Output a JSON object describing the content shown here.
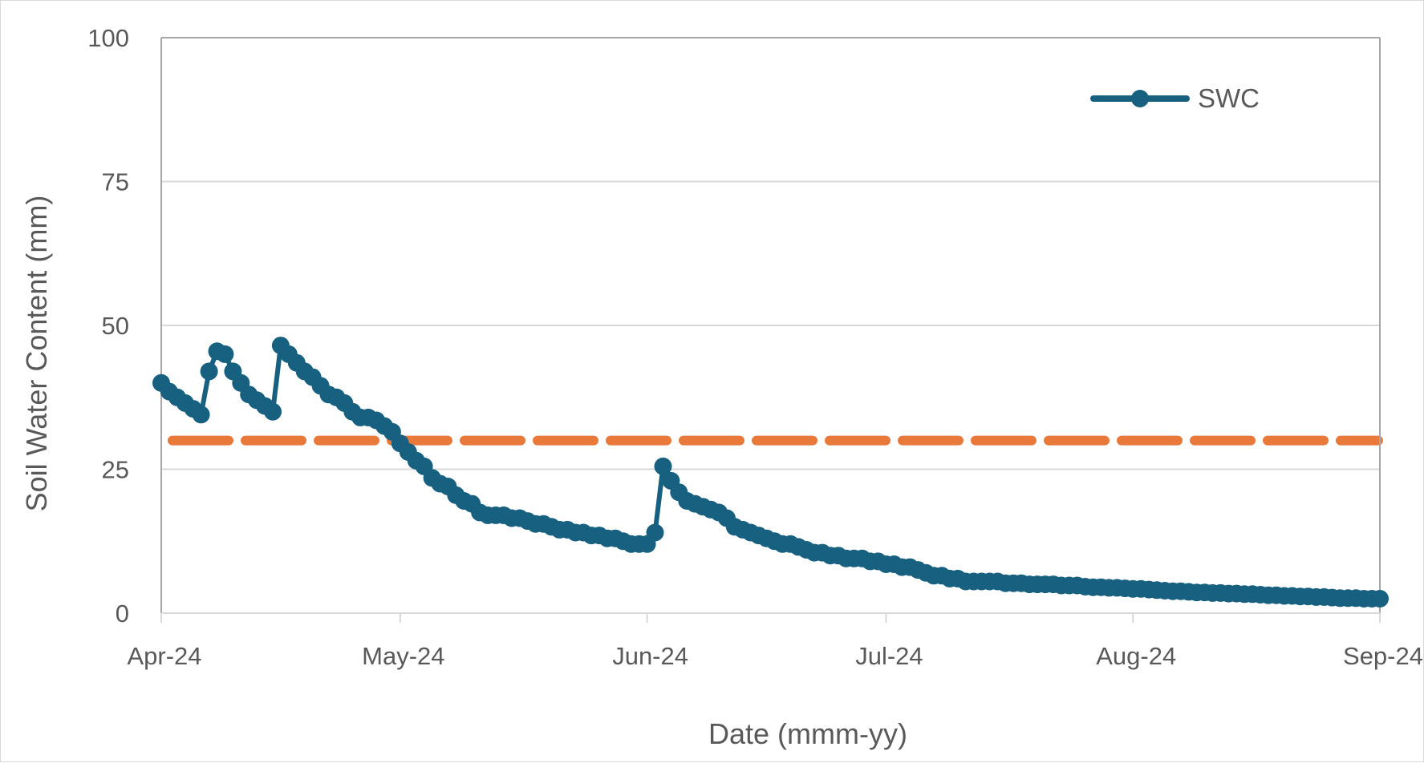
{
  "chart_data": {
    "type": "line",
    "title": "",
    "xlabel": "Date (mmm-yy)",
    "ylabel": "Soil Water Content (mm)",
    "ylim": [
      0,
      100
    ],
    "yticks": [
      "0",
      "25",
      "50",
      "75",
      "100"
    ],
    "xlim": [
      "2024-04-01",
      "2024-09-01"
    ],
    "xticks": [
      {
        "date": "2024-04-01",
        "label": "Apr-24"
      },
      {
        "date": "2024-05-01",
        "label": "May-24"
      },
      {
        "date": "2024-06-01",
        "label": "Jun-24"
      },
      {
        "date": "2024-07-01",
        "label": "Jul-24"
      },
      {
        "date": "2024-08-01",
        "label": "Aug-24"
      },
      {
        "date": "2024-09-01",
        "label": "Sep-24"
      }
    ],
    "grid": true,
    "legend_position": "top-right",
    "series": [
      {
        "name": "SWC",
        "color": "#17607f",
        "marker": "circle",
        "points": [
          [
            "2024-04-01",
            40.0
          ],
          [
            "2024-04-02",
            38.5
          ],
          [
            "2024-04-03",
            37.5
          ],
          [
            "2024-04-04",
            36.5
          ],
          [
            "2024-04-05",
            35.5
          ],
          [
            "2024-04-06",
            34.5
          ],
          [
            "2024-04-07",
            42.0
          ],
          [
            "2024-04-08",
            45.5
          ],
          [
            "2024-04-09",
            45.0
          ],
          [
            "2024-04-10",
            42.0
          ],
          [
            "2024-04-11",
            40.0
          ],
          [
            "2024-04-12",
            38.0
          ],
          [
            "2024-04-13",
            37.0
          ],
          [
            "2024-04-14",
            36.0
          ],
          [
            "2024-04-15",
            35.0
          ],
          [
            "2024-04-16",
            46.5
          ],
          [
            "2024-04-17",
            45.0
          ],
          [
            "2024-04-18",
            43.5
          ],
          [
            "2024-04-19",
            42.0
          ],
          [
            "2024-04-20",
            41.0
          ],
          [
            "2024-04-21",
            39.5
          ],
          [
            "2024-04-22",
            38.0
          ],
          [
            "2024-04-23",
            37.5
          ],
          [
            "2024-04-24",
            36.5
          ],
          [
            "2024-04-25",
            35.0
          ],
          [
            "2024-04-26",
            34.0
          ],
          [
            "2024-04-27",
            34.0
          ],
          [
            "2024-04-28",
            33.5
          ],
          [
            "2024-04-29",
            32.5
          ],
          [
            "2024-04-30",
            31.5
          ],
          [
            "2024-05-01",
            29.5
          ],
          [
            "2024-05-02",
            28.0
          ],
          [
            "2024-05-03",
            26.5
          ],
          [
            "2024-05-04",
            25.5
          ],
          [
            "2024-05-05",
            23.5
          ],
          [
            "2024-05-06",
            22.5
          ],
          [
            "2024-05-07",
            22.0
          ],
          [
            "2024-05-08",
            20.5
          ],
          [
            "2024-05-09",
            19.5
          ],
          [
            "2024-05-10",
            19.0
          ],
          [
            "2024-05-11",
            17.5
          ],
          [
            "2024-05-12",
            17.0
          ],
          [
            "2024-05-13",
            17.0
          ],
          [
            "2024-05-14",
            17.0
          ],
          [
            "2024-05-15",
            16.5
          ],
          [
            "2024-05-16",
            16.5
          ],
          [
            "2024-05-17",
            16.0
          ],
          [
            "2024-05-18",
            15.5
          ],
          [
            "2024-05-19",
            15.5
          ],
          [
            "2024-05-20",
            15.0
          ],
          [
            "2024-05-21",
            14.5
          ],
          [
            "2024-05-22",
            14.5
          ],
          [
            "2024-05-23",
            14.0
          ],
          [
            "2024-05-24",
            14.0
          ],
          [
            "2024-05-25",
            13.5
          ],
          [
            "2024-05-26",
            13.5
          ],
          [
            "2024-05-27",
            13.0
          ],
          [
            "2024-05-28",
            13.0
          ],
          [
            "2024-05-29",
            12.5
          ],
          [
            "2024-05-30",
            12.0
          ],
          [
            "2024-05-31",
            12.0
          ],
          [
            "2024-06-01",
            12.0
          ],
          [
            "2024-06-02",
            14.0
          ],
          [
            "2024-06-03",
            25.5
          ],
          [
            "2024-06-04",
            23.0
          ],
          [
            "2024-06-05",
            21.0
          ],
          [
            "2024-06-06",
            19.5
          ],
          [
            "2024-06-07",
            19.0
          ],
          [
            "2024-06-08",
            18.5
          ],
          [
            "2024-06-09",
            18.0
          ],
          [
            "2024-06-10",
            17.5
          ],
          [
            "2024-06-11",
            16.5
          ],
          [
            "2024-06-12",
            15.0
          ],
          [
            "2024-06-13",
            14.5
          ],
          [
            "2024-06-14",
            14.0
          ],
          [
            "2024-06-15",
            13.5
          ],
          [
            "2024-06-16",
            13.0
          ],
          [
            "2024-06-17",
            12.5
          ],
          [
            "2024-06-18",
            12.0
          ],
          [
            "2024-06-19",
            12.0
          ],
          [
            "2024-06-20",
            11.5
          ],
          [
            "2024-06-21",
            11.0
          ],
          [
            "2024-06-22",
            10.5
          ],
          [
            "2024-06-23",
            10.5
          ],
          [
            "2024-06-24",
            10.0
          ],
          [
            "2024-06-25",
            10.0
          ],
          [
            "2024-06-26",
            9.5
          ],
          [
            "2024-06-27",
            9.5
          ],
          [
            "2024-06-28",
            9.5
          ],
          [
            "2024-06-29",
            9.0
          ],
          [
            "2024-06-30",
            9.0
          ],
          [
            "2024-07-01",
            8.5
          ],
          [
            "2024-07-02",
            8.5
          ],
          [
            "2024-07-03",
            8.0
          ],
          [
            "2024-07-04",
            8.0
          ],
          [
            "2024-07-05",
            7.5
          ],
          [
            "2024-07-06",
            7.0
          ],
          [
            "2024-07-07",
            6.5
          ],
          [
            "2024-07-08",
            6.5
          ],
          [
            "2024-07-09",
            6.0
          ],
          [
            "2024-07-10",
            6.0
          ],
          [
            "2024-07-11",
            5.5
          ],
          [
            "2024-07-12",
            5.5
          ],
          [
            "2024-07-13",
            5.5
          ],
          [
            "2024-07-14",
            5.5
          ],
          [
            "2024-07-15",
            5.5
          ],
          [
            "2024-07-16",
            5.2
          ],
          [
            "2024-07-17",
            5.2
          ],
          [
            "2024-07-18",
            5.2
          ],
          [
            "2024-07-19",
            5.0
          ],
          [
            "2024-07-20",
            5.0
          ],
          [
            "2024-07-21",
            5.0
          ],
          [
            "2024-07-22",
            5.0
          ],
          [
            "2024-07-23",
            4.8
          ],
          [
            "2024-07-24",
            4.8
          ],
          [
            "2024-07-25",
            4.8
          ],
          [
            "2024-07-26",
            4.6
          ],
          [
            "2024-07-27",
            4.5
          ],
          [
            "2024-07-28",
            4.5
          ],
          [
            "2024-07-29",
            4.4
          ],
          [
            "2024-07-30",
            4.4
          ],
          [
            "2024-07-31",
            4.3
          ],
          [
            "2024-08-01",
            4.2
          ],
          [
            "2024-08-02",
            4.2
          ],
          [
            "2024-08-03",
            4.1
          ],
          [
            "2024-08-04",
            4.0
          ],
          [
            "2024-08-05",
            3.9
          ],
          [
            "2024-08-06",
            3.8
          ],
          [
            "2024-08-07",
            3.8
          ],
          [
            "2024-08-08",
            3.7
          ],
          [
            "2024-08-09",
            3.6
          ],
          [
            "2024-08-10",
            3.6
          ],
          [
            "2024-08-11",
            3.5
          ],
          [
            "2024-08-12",
            3.5
          ],
          [
            "2024-08-13",
            3.4
          ],
          [
            "2024-08-14",
            3.4
          ],
          [
            "2024-08-15",
            3.3
          ],
          [
            "2024-08-16",
            3.3
          ],
          [
            "2024-08-17",
            3.2
          ],
          [
            "2024-08-18",
            3.1
          ],
          [
            "2024-08-19",
            3.1
          ],
          [
            "2024-08-20",
            3.0
          ],
          [
            "2024-08-21",
            3.0
          ],
          [
            "2024-08-22",
            2.9
          ],
          [
            "2024-08-23",
            2.9
          ],
          [
            "2024-08-24",
            2.8
          ],
          [
            "2024-08-25",
            2.8
          ],
          [
            "2024-08-26",
            2.7
          ],
          [
            "2024-08-27",
            2.6
          ],
          [
            "2024-08-28",
            2.6
          ],
          [
            "2024-08-29",
            2.6
          ],
          [
            "2024-08-30",
            2.5
          ],
          [
            "2024-08-31",
            2.5
          ],
          [
            "2024-09-01",
            2.5
          ]
        ]
      }
    ],
    "reference_line": {
      "y": 30,
      "color": "#e8793a",
      "style": "dashed"
    }
  }
}
